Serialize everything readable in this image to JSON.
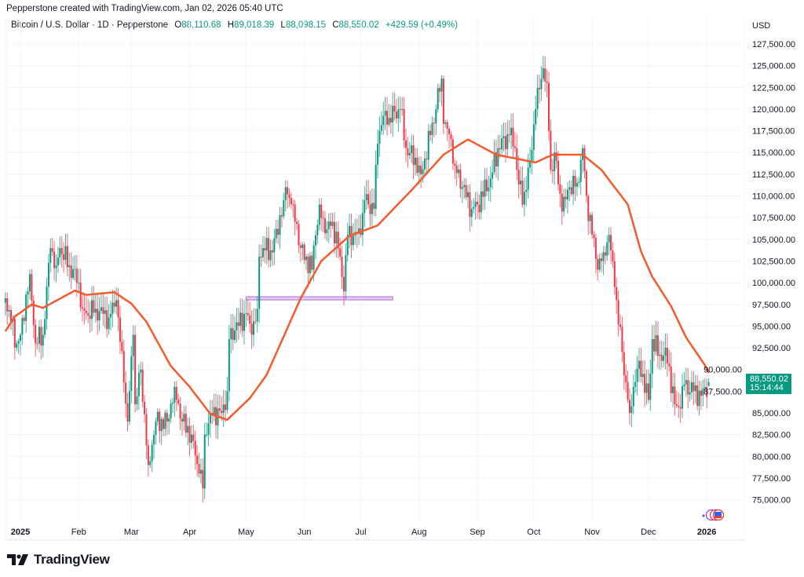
{
  "header": {
    "credit": "Pepperstone created with TradingView.com, Jan 02, 2026 05:40 UTC",
    "symbol": "Bitcoin / U.S. Dollar · 1D · Pepperstone",
    "open_label": "O",
    "open": "88,110.68",
    "high_label": "H",
    "high": "89,018.39",
    "low_label": "L",
    "low": "88,098.15",
    "close_label": "C",
    "close": "88,550.02",
    "change": "+429.59 (+0.49%)"
  },
  "price_axis": {
    "currency": "USD",
    "last_price": "88,550.02",
    "countdown": "15:14:44"
  },
  "logo": {
    "text": "TradingView"
  },
  "colors": {
    "up": "#089981",
    "down": "#f23645",
    "ma": "#f35a2c",
    "zone": "#b36ad6",
    "grid": "#f0f3fa"
  },
  "chart_data": {
    "type": "candlestick",
    "timeframe": "1D",
    "ylim": [
      72700,
      129400
    ],
    "y_ticks": [
      "75,000.00",
      "77,500.00",
      "80,000.00",
      "82,500.00",
      "85,000.00",
      "87,500.00",
      "90,000.00",
      "92,500.00",
      "95,000.00",
      "97,500.00",
      "100,000.00",
      "102,500.00",
      "105,000.00",
      "107,500.00",
      "110,000.00",
      "112,500.00",
      "115,000.00",
      "117,500.00",
      "120,000.00",
      "122,500.00",
      "125,000.00",
      "127,500.00"
    ],
    "x_ticks": [
      {
        "label": "2025",
        "date": "2025-01-01",
        "bold": true
      },
      {
        "label": "Feb",
        "date": "2025-02-01"
      },
      {
        "label": "Mar",
        "date": "2025-03-01"
      },
      {
        "label": "Apr",
        "date": "2025-04-01"
      },
      {
        "label": "May",
        "date": "2025-05-01"
      },
      {
        "label": "Jun",
        "date": "2025-06-01"
      },
      {
        "label": "Jul",
        "date": "2025-07-01"
      },
      {
        "label": "Aug",
        "date": "2025-08-01"
      },
      {
        "label": "Sep",
        "date": "2025-09-01"
      },
      {
        "label": "Oct",
        "date": "2025-10-01"
      },
      {
        "label": "Nov",
        "date": "2025-11-01"
      },
      {
        "label": "Dec",
        "date": "2025-12-01"
      },
      {
        "label": "2026",
        "date": "2026-01-01",
        "bold": true
      }
    ],
    "close_points": [
      [
        "2024-12-24",
        98200
      ],
      [
        "2024-12-27",
        95500
      ],
      [
        "2024-12-30",
        93000
      ],
      [
        "2025-01-01",
        94000
      ],
      [
        "2025-01-06",
        101000
      ],
      [
        "2025-01-09",
        93000
      ],
      [
        "2025-01-13",
        94000
      ],
      [
        "2025-01-17",
        104000
      ],
      [
        "2025-01-20",
        102000
      ],
      [
        "2025-01-22",
        104000
      ],
      [
        "2025-01-27",
        102000
      ],
      [
        "2025-02-01",
        100000
      ],
      [
        "2025-02-03",
        97000
      ],
      [
        "2025-02-05",
        96500
      ],
      [
        "2025-02-10",
        97000
      ],
      [
        "2025-02-17",
        96000
      ],
      [
        "2025-02-21",
        98000
      ],
      [
        "2025-02-22",
        96000
      ],
      [
        "2025-02-25",
        88500
      ],
      [
        "2025-02-27",
        84000
      ],
      [
        "2025-03-02",
        94000
      ],
      [
        "2025-03-03",
        86000
      ],
      [
        "2025-03-06",
        90000
      ],
      [
        "2025-03-10",
        79000
      ],
      [
        "2025-03-14",
        84000
      ],
      [
        "2025-03-20",
        84000
      ],
      [
        "2025-03-24",
        88000
      ],
      [
        "2025-03-28",
        84000
      ],
      [
        "2025-04-02",
        82500
      ],
      [
        "2025-04-06",
        78000
      ],
      [
        "2025-04-08",
        76300
      ],
      [
        "2025-04-09",
        82500
      ],
      [
        "2025-04-12",
        85000
      ],
      [
        "2025-04-18",
        85000
      ],
      [
        "2025-04-21",
        87500
      ],
      [
        "2025-04-22",
        93500
      ],
      [
        "2025-04-25",
        94500
      ],
      [
        "2025-05-01",
        96500
      ],
      [
        "2025-05-04",
        94000
      ],
      [
        "2025-05-07",
        97000
      ],
      [
        "2025-05-08",
        103000
      ],
      [
        "2025-05-10",
        104000
      ],
      [
        "2025-05-15",
        103500
      ],
      [
        "2025-05-21",
        109500
      ],
      [
        "2025-05-22",
        111000
      ],
      [
        "2025-05-26",
        109000
      ],
      [
        "2025-05-30",
        104000
      ],
      [
        "2025-06-05",
        101500
      ],
      [
        "2025-06-06",
        104300
      ],
      [
        "2025-06-09",
        109000
      ],
      [
        "2025-06-12",
        105700
      ],
      [
        "2025-06-16",
        107000
      ],
      [
        "2025-06-20",
        103000
      ],
      [
        "2025-06-22",
        99000
      ],
      [
        "2025-06-24",
        105500
      ],
      [
        "2025-07-01",
        105500
      ],
      [
        "2025-07-03",
        109500
      ],
      [
        "2025-07-08",
        108500
      ],
      [
        "2025-07-10",
        116000
      ],
      [
        "2025-07-11",
        117500
      ],
      [
        "2025-07-14",
        119800
      ],
      [
        "2025-07-16",
        119000
      ],
      [
        "2025-07-22",
        120000
      ],
      [
        "2025-07-25",
        115500
      ],
      [
        "2025-08-01",
        113500
      ],
      [
        "2025-08-02",
        112500
      ],
      [
        "2025-08-07",
        117000
      ],
      [
        "2025-08-13",
        123500
      ],
      [
        "2025-08-14",
        118300
      ],
      [
        "2025-08-18",
        116500
      ],
      [
        "2025-08-20",
        113500
      ],
      [
        "2025-08-24",
        111000
      ],
      [
        "2025-08-29",
        108500
      ],
      [
        "2025-09-01",
        109000
      ],
      [
        "2025-09-08",
        112000
      ],
      [
        "2025-09-12",
        115500
      ],
      [
        "2025-09-18",
        117000
      ],
      [
        "2025-09-21",
        115500
      ],
      [
        "2025-09-22",
        113000
      ],
      [
        "2025-09-25",
        109000
      ],
      [
        "2025-09-29",
        114000
      ],
      [
        "2025-10-02",
        120000
      ],
      [
        "2025-10-06",
        124700
      ],
      [
        "2025-10-08",
        123000
      ],
      [
        "2025-10-10",
        113000
      ],
      [
        "2025-10-12",
        115000
      ],
      [
        "2025-10-16",
        108200
      ],
      [
        "2025-10-20",
        111000
      ],
      [
        "2025-10-24",
        111500
      ],
      [
        "2025-10-27",
        115500
      ],
      [
        "2025-10-29",
        110000
      ],
      [
        "2025-11-04",
        101500
      ],
      [
        "2025-11-07",
        103500
      ],
      [
        "2025-11-10",
        105500
      ],
      [
        "2025-11-13",
        99500
      ],
      [
        "2025-11-17",
        92000
      ],
      [
        "2025-11-20",
        86500
      ],
      [
        "2025-11-21",
        85000
      ],
      [
        "2025-11-23",
        88000
      ],
      [
        "2025-11-26",
        91000
      ],
      [
        "2025-12-01",
        86500
      ],
      [
        "2025-12-03",
        93500
      ],
      [
        "2025-12-08",
        91000
      ],
      [
        "2025-12-10",
        92500
      ],
      [
        "2025-12-15",
        86000
      ],
      [
        "2025-12-18",
        85500
      ],
      [
        "2025-12-20",
        88300
      ],
      [
        "2025-12-25",
        87500
      ],
      [
        "2025-12-29",
        87000
      ],
      [
        "2026-01-02",
        88550.02
      ]
    ],
    "moving_average": [
      [
        "2024-12-24",
        94400
      ],
      [
        "2024-12-29",
        96100
      ],
      [
        "2025-01-07",
        97500
      ],
      [
        "2025-01-13",
        97100
      ],
      [
        "2025-01-30",
        99100
      ],
      [
        "2025-02-05",
        98600
      ],
      [
        "2025-02-20",
        98900
      ],
      [
        "2025-03-01",
        97600
      ],
      [
        "2025-03-09",
        95500
      ],
      [
        "2025-03-22",
        90400
      ],
      [
        "2025-04-01",
        88000
      ],
      [
        "2025-04-12",
        84900
      ],
      [
        "2025-04-21",
        84200
      ],
      [
        "2025-05-03",
        86700
      ],
      [
        "2025-05-12",
        89400
      ],
      [
        "2025-05-30",
        98200
      ],
      [
        "2025-06-10",
        102500
      ],
      [
        "2025-06-25",
        105400
      ],
      [
        "2025-07-10",
        106600
      ],
      [
        "2025-07-29",
        110900
      ],
      [
        "2025-08-14",
        114750
      ],
      [
        "2025-08-27",
        116500
      ],
      [
        "2025-09-11",
        114750
      ],
      [
        "2025-10-02",
        113850
      ],
      [
        "2025-10-11",
        114750
      ],
      [
        "2025-10-27",
        114750
      ],
      [
        "2025-11-06",
        113000
      ],
      [
        "2025-11-20",
        109000
      ],
      [
        "2025-11-27",
        103600
      ],
      [
        "2025-12-03",
        100700
      ],
      [
        "2025-12-13",
        97300
      ],
      [
        "2025-12-21",
        93700
      ],
      [
        "2025-12-31",
        90500
      ],
      [
        "2026-01-02",
        89600
      ]
    ],
    "support_zone": {
      "price": 98200,
      "from": "2025-05-01",
      "to": "2025-07-18"
    }
  }
}
